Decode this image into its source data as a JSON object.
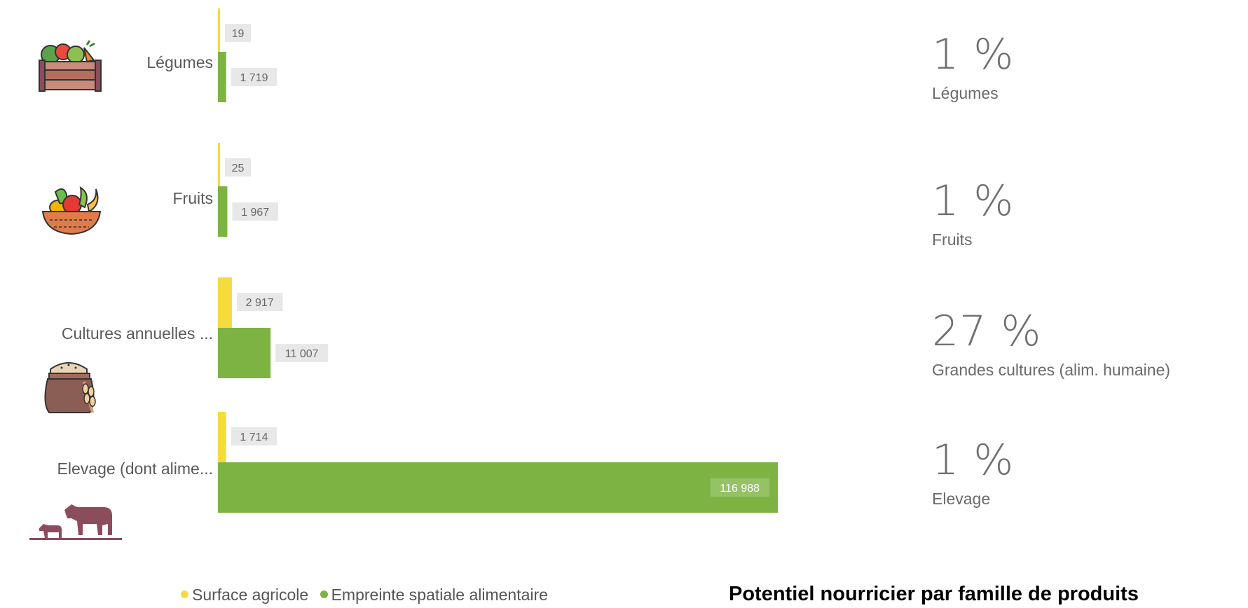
{
  "chart_data": {
    "type": "bar",
    "orientation": "horizontal",
    "categories": [
      "Légumes",
      "Fruits",
      "Cultures annuelles ...",
      "Elevage (dont alime..."
    ],
    "series": [
      {
        "name": "Surface agricole",
        "color": "#f5dc3c",
        "values": [
          19,
          25,
          2917,
          1714
        ],
        "labels": [
          "19",
          "25",
          "2 917",
          "1 714"
        ]
      },
      {
        "name": "Empreinte spatiale alimentaire",
        "color": "#7cb342",
        "values": [
          1719,
          1967,
          11007,
          116988
        ],
        "labels": [
          "1 719",
          "1 967",
          "11 007",
          "116 988"
        ]
      }
    ],
    "xlim": [
      0,
      116988
    ],
    "grid": false,
    "legend": "bottom"
  },
  "icons": [
    "vegetable-crate-icon",
    "fruit-basket-icon",
    "grain-sack-icon",
    "livestock-icon"
  ],
  "stats": [
    {
      "percent": "1 %",
      "caption": "Légumes"
    },
    {
      "percent": "1 %",
      "caption": "Fruits"
    },
    {
      "percent": "27 %",
      "caption": "Grandes cultures (alim. humaine)"
    },
    {
      "percent": "1 %",
      "caption": "Elevage"
    }
  ],
  "legend": {
    "surface": "Surface agricole",
    "empreinte": "Empreinte spatiale alimentaire"
  },
  "colors": {
    "surface": "#f5dc3c",
    "empreinte": "#7cb342",
    "icon_brown": "#8b4c5c"
  },
  "title": "Potentiel nourricier par famille de produits"
}
